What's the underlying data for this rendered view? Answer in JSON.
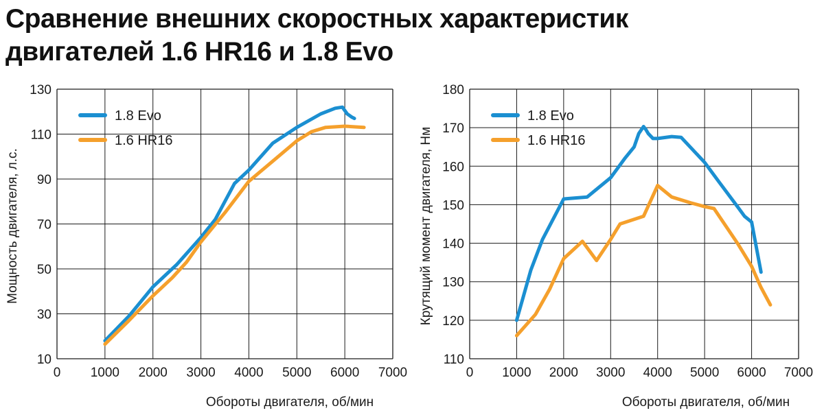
{
  "title": {
    "line1": "Сравнение внешних скоростных характеристик",
    "line2": "двигателей 1.6 HR16 и 1.8 Evo"
  },
  "colors": {
    "evo": "#1b8fd1",
    "hr16": "#f5a02c",
    "grid": "#1a1a1a"
  },
  "chart_data": [
    {
      "type": "line",
      "ylabel": "Мощность двигателя, л.с.",
      "xlabel": "Обороты двигателя, об/мин",
      "xlim": [
        0,
        7000
      ],
      "ylim": [
        10,
        130
      ],
      "xticks": [
        0,
        1000,
        2000,
        3000,
        4000,
        5000,
        6000,
        7000
      ],
      "yticks": [
        10,
        30,
        50,
        70,
        90,
        110,
        130
      ],
      "grid": true,
      "legend": "top-left",
      "series": [
        {
          "name": "1.8 Evo",
          "color": "#1b8fd1",
          "x": [
            1000,
            1500,
            2000,
            2500,
            3000,
            3300,
            3700,
            4000,
            4500,
            5000,
            5500,
            5800,
            5950,
            6050,
            6150,
            6200
          ],
          "y": [
            18,
            29,
            42,
            52,
            64,
            72,
            88,
            94,
            106,
            113,
            119,
            121.5,
            122,
            119,
            117.5,
            117
          ]
        },
        {
          "name": "1.6 HR16",
          "color": "#f5a02c",
          "x": [
            1000,
            1500,
            2000,
            2400,
            2700,
            3000,
            3500,
            4000,
            4500,
            5000,
            5300,
            5600,
            6000,
            6400
          ],
          "y": [
            16.5,
            27,
            38,
            46,
            53,
            62,
            75,
            89,
            98,
            107,
            111,
            113,
            113.5,
            113
          ]
        }
      ]
    },
    {
      "type": "line",
      "ylabel": "Крутящий момент двигателя, Нм",
      "xlabel": "Обороты двигателя, об/мин",
      "xlim": [
        0,
        7000
      ],
      "ylim": [
        110,
        180
      ],
      "xticks": [
        0,
        1000,
        2000,
        3000,
        4000,
        5000,
        6000,
        7000
      ],
      "yticks": [
        110,
        120,
        130,
        140,
        150,
        160,
        170,
        180
      ],
      "grid": true,
      "legend": "top-left",
      "series": [
        {
          "name": "1.8 Evo",
          "color": "#1b8fd1",
          "x": [
            1000,
            1300,
            1550,
            2000,
            2500,
            3000,
            3300,
            3500,
            3600,
            3700,
            3750,
            3800,
            3900,
            4000,
            4300,
            4500,
            5000,
            5300,
            5700,
            5850,
            6000,
            6100,
            6200
          ],
          "y": [
            120,
            133,
            141,
            151.5,
            152,
            157,
            162,
            165,
            168.5,
            170.3,
            169.5,
            168.5,
            167.2,
            167.2,
            167.7,
            167.5,
            161,
            156,
            149.5,
            147,
            145.5,
            139,
            132.5
          ]
        },
        {
          "name": "1.6 HR16",
          "color": "#f5a02c",
          "x": [
            1000,
            1400,
            1700,
            2000,
            2400,
            2700,
            3000,
            3200,
            3700,
            4000,
            4300,
            4700,
            5000,
            5200,
            5700,
            6000,
            6200,
            6400
          ],
          "y": [
            116,
            121.5,
            128,
            136,
            140.5,
            135.5,
            141,
            145,
            147,
            155,
            152,
            150.5,
            149.5,
            149,
            140,
            134,
            128.5,
            124
          ]
        }
      ]
    }
  ]
}
